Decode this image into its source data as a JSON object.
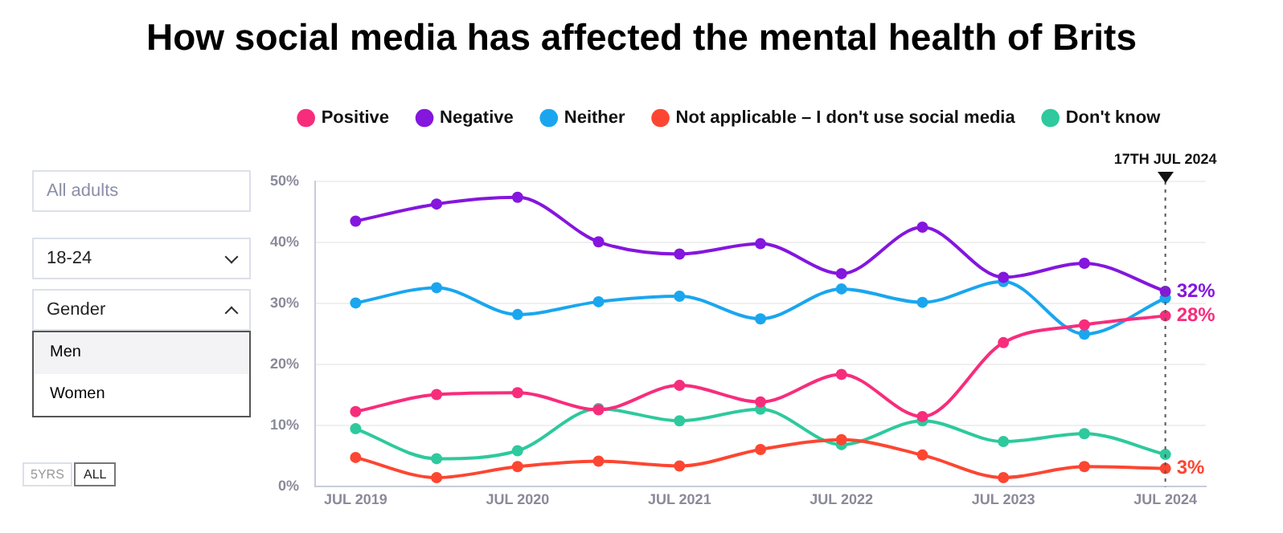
{
  "chart_data": {
    "type": "line",
    "title": "How social media has affected the mental health of Brits",
    "x": [
      "2019-07",
      "2020-01",
      "2020-07",
      "2021-01",
      "2021-07",
      "2022-01",
      "2022-07",
      "2023-01",
      "2023-07",
      "2024-01",
      "2024-07"
    ],
    "series": [
      {
        "name": "Positive",
        "color": "#f72d7c",
        "values": [
          12.3,
          15.1,
          15.4,
          12.6,
          16.6,
          13.9,
          18.4,
          11.5,
          23.6,
          26.5,
          28
        ],
        "value_labels": [
          null,
          null,
          null,
          null,
          null,
          null,
          null,
          null,
          null,
          null,
          "28%"
        ]
      },
      {
        "name": "Negative",
        "color": "#8416de",
        "values": [
          43.5,
          46.3,
          47.4,
          40.1,
          38.1,
          39.8,
          34.9,
          42.5,
          34.3,
          36.6,
          32
        ],
        "value_labels": [
          null,
          null,
          null,
          null,
          null,
          null,
          null,
          null,
          null,
          null,
          "32%"
        ]
      },
      {
        "name": "Neither",
        "color": "#1aa6ef",
        "values": [
          30.1,
          32.6,
          28.2,
          30.3,
          31.2,
          27.5,
          32.4,
          30.2,
          33.6,
          25.0,
          30.9
        ]
      },
      {
        "name": "Not applicable – I don't use social media",
        "color": "#fc4632",
        "values": [
          4.8,
          1.5,
          3.3,
          4.2,
          3.4,
          6.1,
          7.7,
          5.2,
          1.5,
          3.3,
          3
        ],
        "value_labels": [
          null,
          null,
          null,
          null,
          null,
          null,
          null,
          null,
          null,
          null,
          "3%"
        ]
      },
      {
        "name": "Don't know",
        "color": "#2ec99d",
        "values": [
          9.5,
          4.6,
          5.9,
          12.8,
          10.8,
          12.7,
          6.9,
          10.8,
          7.4,
          8.7,
          5.3
        ]
      }
    ],
    "xlim": [
      "2019-04",
      "2024-10"
    ],
    "xticks": [
      {
        "value": "2019-07",
        "label": "JUL 2019"
      },
      {
        "value": "2020-07",
        "label": "JUL 2020"
      },
      {
        "value": "2021-07",
        "label": "JUL 2021"
      },
      {
        "value": "2022-07",
        "label": "JUL 2022"
      },
      {
        "value": "2023-07",
        "label": "JUL 2023"
      },
      {
        "value": "2024-07",
        "label": "JUL 2024"
      }
    ],
    "ylim": [
      0,
      50
    ],
    "yticks": [
      {
        "value": 0,
        "label": "0%"
      },
      {
        "value": 10,
        "label": "10%"
      },
      {
        "value": 20,
        "label": "20%"
      },
      {
        "value": 30,
        "label": "30%"
      },
      {
        "value": 40,
        "label": "40%"
      },
      {
        "value": 50,
        "label": "50%"
      }
    ],
    "grid": "y",
    "legend": "top",
    "marker": "circle",
    "line_style": "solid",
    "ref_lines": [
      {
        "axis": "x",
        "value": "2024-07",
        "label": "17TH JUL 2024",
        "color": "#555555",
        "line_style": "dotted"
      }
    ],
    "annotations": [
      "All adults",
      "18-24",
      "Gender",
      "Men",
      "Women",
      "5YRS",
      "ALL"
    ]
  }
}
